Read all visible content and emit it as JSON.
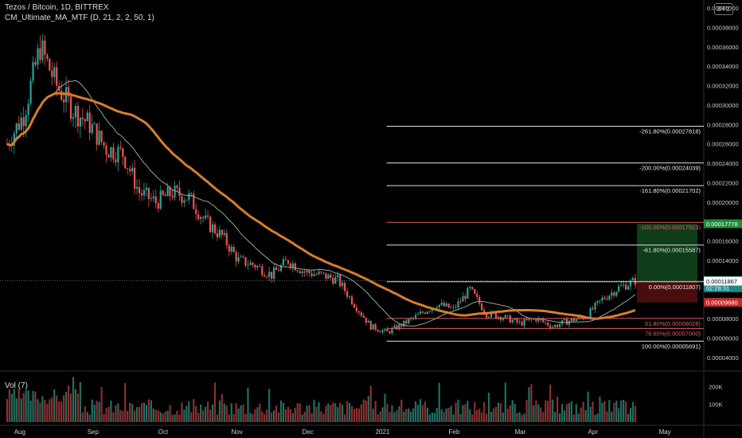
{
  "header": {
    "symbol_line": "Tezos / Bitcoin, 1D, BITTREX",
    "indicator": "CM_Ultimate_MA_MTF (D, 21, 2, 2, 50, 1)",
    "currency_badge": "BTC",
    "volume_label": "Vol (7)"
  },
  "colors": {
    "background": "#000000",
    "candle_up": "#26a69a",
    "candle_down": "#ef5350",
    "ma_slow": "#d97d2a",
    "ma_fast": "#8fa8a0",
    "fib_line": "#e0e0e0",
    "fib_red": "#e06060",
    "target_zone": "#0f3d1a",
    "stop_zone": "#4a0d0d"
  },
  "chart_data": {
    "type": "candlestick",
    "title": "Tezos / Bitcoin, 1D, BITTREX",
    "ylim": [
      4e-05,
      0.0004
    ],
    "y_ticks": [
      "0.00040000",
      "0.00038000",
      "0.00036000",
      "0.00034000",
      "0.00032000",
      "0.00030000",
      "0.00028000",
      "0.00026000",
      "0.00024000",
      "0.00022000",
      "0.00020000",
      "0.00018000",
      "0.00016000",
      "0.00014000",
      "0.00012000",
      "0.00010000",
      "0.00008000",
      "0.00006000",
      "0.00004000"
    ],
    "x_ticks": [
      "Aug",
      "Sep",
      "Oct",
      "Nov",
      "Dec",
      "2021",
      "Feb",
      "Mar",
      "Apr",
      "May"
    ],
    "price_path": [
      {
        "date": "2020-07-27",
        "close": 0.00026
      },
      {
        "date": "2020-08-03",
        "close": 0.00029
      },
      {
        "date": "2020-08-10",
        "close": 0.00036
      },
      {
        "date": "2020-08-17",
        "close": 0.00032
      },
      {
        "date": "2020-08-24",
        "close": 0.000295
      },
      {
        "date": "2020-08-31",
        "close": 0.00028
      },
      {
        "date": "2020-09-07",
        "close": 0.000255
      },
      {
        "date": "2020-09-14",
        "close": 0.00025
      },
      {
        "date": "2020-09-21",
        "close": 0.00021
      },
      {
        "date": "2020-09-28",
        "close": 0.0002
      },
      {
        "date": "2020-10-05",
        "close": 0.00021
      },
      {
        "date": "2020-10-12",
        "close": 0.000205
      },
      {
        "date": "2020-10-19",
        "close": 0.00018
      },
      {
        "date": "2020-10-26",
        "close": 0.000165
      },
      {
        "date": "2020-11-02",
        "close": 0.00014
      },
      {
        "date": "2020-11-09",
        "close": 0.000135
      },
      {
        "date": "2020-11-16",
        "close": 0.000125
      },
      {
        "date": "2020-11-23",
        "close": 0.00014
      },
      {
        "date": "2020-11-30",
        "close": 0.000128
      },
      {
        "date": "2020-12-07",
        "close": 0.000125
      },
      {
        "date": "2020-12-14",
        "close": 0.00012
      },
      {
        "date": "2020-12-21",
        "close": 9.5e-05
      },
      {
        "date": "2020-12-28",
        "close": 7.2e-05
      },
      {
        "date": "2021-01-04",
        "close": 6.6e-05
      },
      {
        "date": "2021-01-11",
        "close": 7.5e-05
      },
      {
        "date": "2021-01-18",
        "close": 8.5e-05
      },
      {
        "date": "2021-01-25",
        "close": 9.5e-05
      },
      {
        "date": "2021-02-01",
        "close": 9e-05
      },
      {
        "date": "2021-02-08",
        "close": 0.00011
      },
      {
        "date": "2021-02-15",
        "close": 8.5e-05
      },
      {
        "date": "2021-02-22",
        "close": 8.2e-05
      },
      {
        "date": "2021-03-01",
        "close": 7.5e-05
      },
      {
        "date": "2021-03-08",
        "close": 8e-05
      },
      {
        "date": "2021-03-15",
        "close": 7.2e-05
      },
      {
        "date": "2021-03-22",
        "close": 7.8e-05
      },
      {
        "date": "2021-03-29",
        "close": 8.2e-05
      },
      {
        "date": "2021-04-05",
        "close": 0.0001
      },
      {
        "date": "2021-04-12",
        "close": 0.000112
      },
      {
        "date": "2021-04-19",
        "close": 0.000119
      }
    ],
    "fib_levels": [
      {
        "label": "-261.80%(0.00027818)",
        "value": 0.00027818,
        "color": "white"
      },
      {
        "label": "-200.00%(0.00024039)",
        "value": 0.00024039,
        "color": "white"
      },
      {
        "label": "-161.80%(0.00021702)",
        "value": 0.00021702,
        "color": "white"
      },
      {
        "label": "-100.00%(0.00017923)",
        "value": 0.00017923,
        "color": "red"
      },
      {
        "label": "-61.80%(0.00015587)",
        "value": 0.00015587,
        "color": "white"
      },
      {
        "label": "0.00%(0.00011807)",
        "value": 0.00011807,
        "color": "white"
      },
      {
        "label": "61.80%(0.00008028)",
        "value": 8.028e-05,
        "color": "red"
      },
      {
        "label": "78.60%(0.00007000)",
        "value": 7e-05,
        "color": "red"
      },
      {
        "label": "100.00%(0.00005691)",
        "value": 5.691e-05,
        "color": "white"
      }
    ],
    "price_labels": [
      {
        "text": "0.00017778",
        "value": 0.00017778,
        "bg": "#1e8c3a"
      },
      {
        "text": "0.00011928",
        "value": 0.00011928,
        "bg": "#1d8a8a",
        "sub": "02:28:31"
      },
      {
        "text": "0.00011867",
        "value": 0.00011867,
        "bg": "#ffffff",
        "fg": "#000000"
      },
      {
        "text": "0.00009680",
        "value": 9.68e-05,
        "bg": "#c62828"
      }
    ],
    "position": {
      "entry": 0.00011867,
      "target": 0.00017778,
      "stop": 9.68e-05
    },
    "volume_axis": {
      "ylim": [
        0,
        260000
      ],
      "ticks": [
        "200K",
        "100K"
      ],
      "tick_values": [
        200000,
        100000
      ]
    }
  }
}
